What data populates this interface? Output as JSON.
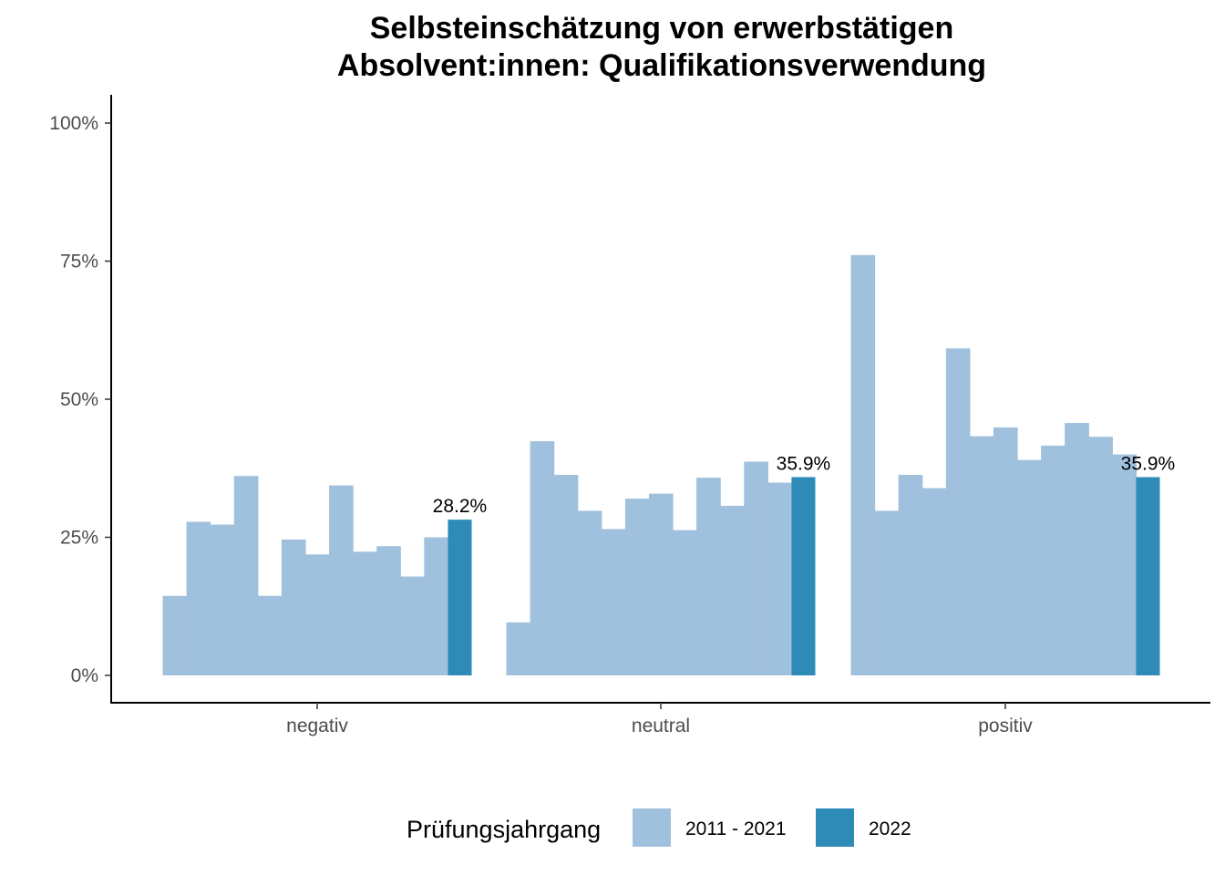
{
  "chart_data": {
    "type": "bar",
    "title_line1": "Selbsteinschätzung von erwerbstätigen",
    "title_line2": "Absolvent:innen: Qualifikationsverwendung",
    "xlabel": "",
    "ylabel": "",
    "categories": [
      "negativ",
      "neutral",
      "positiv"
    ],
    "ylim": [
      0,
      1
    ],
    "y_ticks": [
      {
        "value": 0,
        "label": "0%"
      },
      {
        "value": 0.25,
        "label": "25%"
      },
      {
        "value": 0.5,
        "label": "50%"
      },
      {
        "value": 0.75,
        "label": "75%"
      },
      {
        "value": 1,
        "label": "100%"
      }
    ],
    "legend": {
      "title": "Prüfungsjahrgang",
      "position": "bottom",
      "items": [
        {
          "label": "2011 - 2021",
          "color": "#a0c1dd"
        },
        {
          "label": "2022",
          "color": "#2e8bb8"
        }
      ]
    },
    "series": [
      {
        "name": "2011 - 2021",
        "color": "#a0c1dd",
        "values": [
          [
            0.144,
            0.278,
            0.273,
            0.361,
            0.144,
            0.246,
            0.219,
            0.344,
            0.224,
            0.234,
            0.179,
            0.25
          ],
          [
            0.096,
            0.424,
            0.363,
            0.298,
            0.265,
            0.32,
            0.329,
            0.263,
            0.358,
            0.307,
            0.387,
            0.349
          ],
          [
            0.761,
            0.298,
            0.363,
            0.339,
            0.592,
            0.433,
            0.449,
            0.39,
            0.416,
            0.457,
            0.432,
            0.4
          ]
        ]
      },
      {
        "name": "2022",
        "color": "#2e8bb8",
        "values": [
          0.282,
          0.359,
          0.359
        ],
        "labels": [
          "28.2%",
          "35.9%",
          "35.9%"
        ]
      }
    ],
    "grid": false
  }
}
